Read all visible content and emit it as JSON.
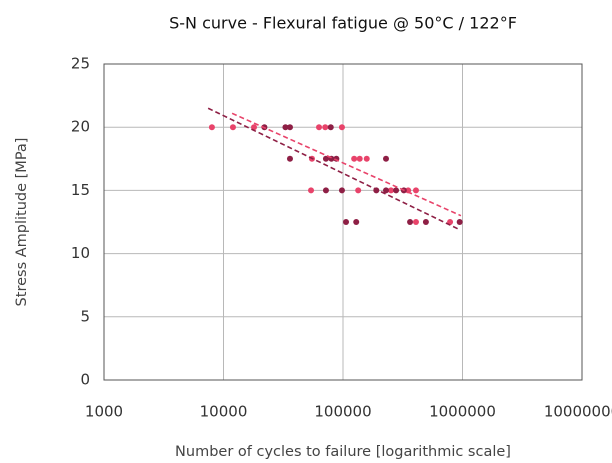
{
  "chart_data": {
    "type": "scatter",
    "title": "S-N curve - Flexural fatigue @ 50°C / 122°F",
    "x_label": "Number of cycles to failure [logarithmic scale]",
    "y_label": "Stress Amplitude [MPa]",
    "xscale": "log",
    "xlim": [
      1000,
      10000000
    ],
    "xticks": [
      1000,
      10000,
      100000,
      1000000,
      10000000
    ],
    "ylim": [
      0,
      25
    ],
    "yticks": [
      0,
      5,
      10,
      15,
      20,
      25
    ],
    "grid": true,
    "series": [
      {
        "color": "#e8436a",
        "x": [
          8000,
          12000,
          18000,
          63000,
          71000,
          98000,
          55000,
          124000,
          138000,
          158000,
          54000,
          134000,
          252000,
          351000,
          408000,
          408000,
          787000
        ],
        "values": [
          20,
          20,
          20,
          20,
          20,
          20,
          17.5,
          17.5,
          17.5,
          17.5,
          15,
          15,
          15,
          15,
          15,
          12.5,
          12.5
        ]
      },
      {
        "color": "#8e1f45",
        "x": [
          22000,
          33000,
          36000,
          79000,
          36000,
          72000,
          80000,
          88000,
          229000,
          72000,
          98000,
          190000,
          229000,
          278000,
          323000,
          106000,
          129000,
          364000,
          494000,
          947000
        ],
        "values": [
          20,
          20,
          20,
          20,
          17.5,
          17.5,
          17.5,
          17.5,
          17.5,
          15,
          15,
          15,
          15,
          15,
          15,
          12.5,
          12.5,
          12.5,
          12.5,
          12.5
        ]
      }
    ],
    "trendlines": [
      {
        "color": "#e8436a",
        "x": [
          11800,
          970000
        ],
        "values": [
          21.1,
          13.0
        ]
      },
      {
        "color": "#8e1f45",
        "x": [
          7440,
          920000
        ],
        "values": [
          21.5,
          11.95
        ]
      }
    ]
  }
}
